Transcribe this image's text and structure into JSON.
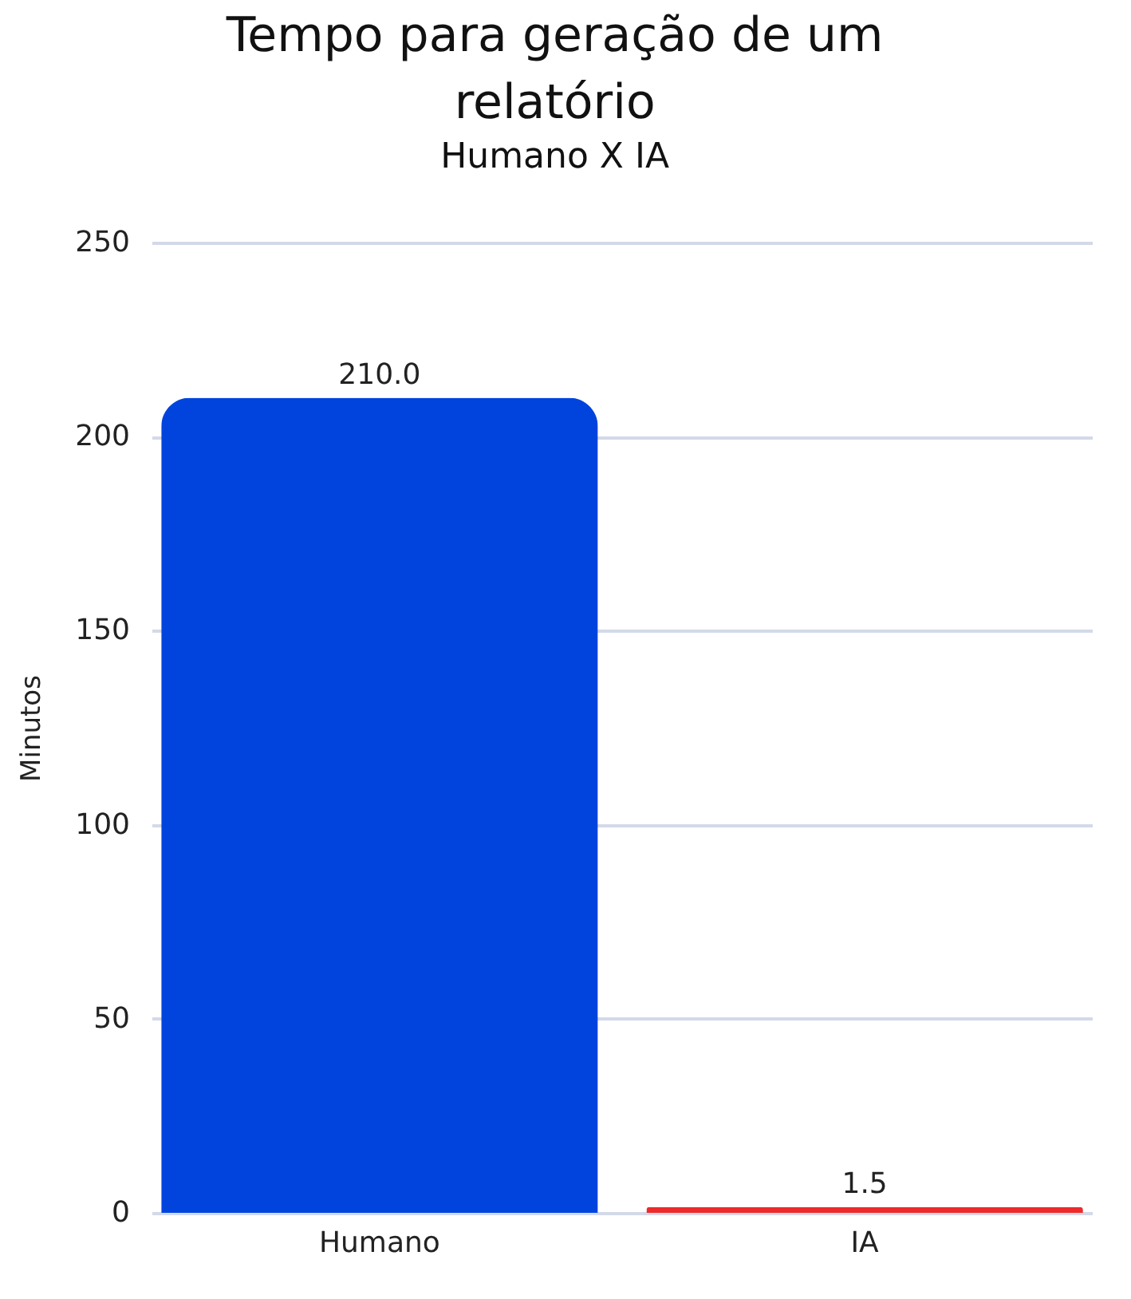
{
  "chart_data": {
    "type": "bar",
    "title": "Tempo para geração de um relatório",
    "subtitle": "Humano X IA",
    "ylabel": "Minutos",
    "categories": [
      "Humano",
      "IA"
    ],
    "values": [
      210.0,
      1.5
    ],
    "colors": [
      "#0044dd",
      "#ee2a2a"
    ],
    "value_labels": [
      "210.0",
      "1.5"
    ],
    "ylim": [
      0,
      250
    ],
    "yticks": [
      0,
      50,
      100,
      150,
      200,
      250
    ],
    "grid": "y"
  }
}
